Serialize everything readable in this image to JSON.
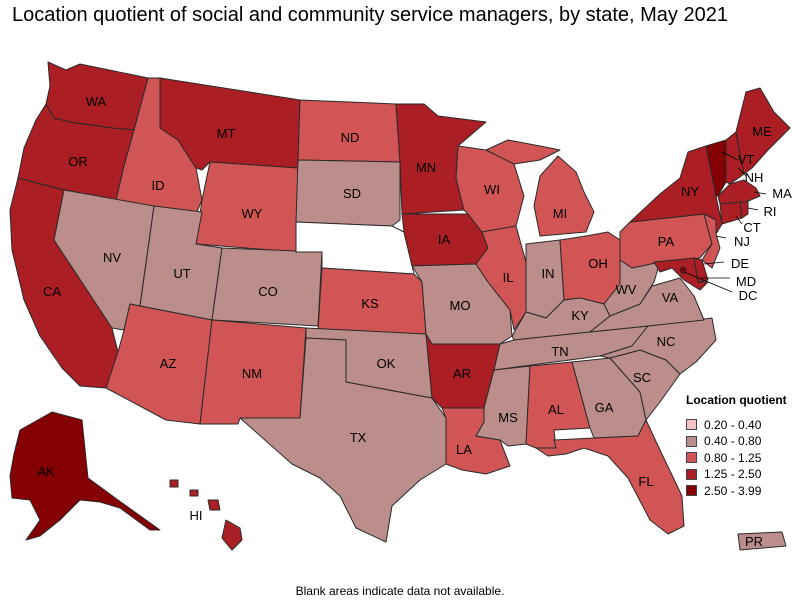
{
  "title": "Location quotient of social and community service managers, by state, May 2021",
  "footnote": "Blank areas indicate data not available.",
  "legend": {
    "title": "Location quotient",
    "items": [
      {
        "label": "0.20 - 0.40",
        "color": "#f4c2c4"
      },
      {
        "label": "0.40 - 0.80",
        "color": "#bb8e8b"
      },
      {
        "label": "0.80 - 1.25",
        "color": "#d25556"
      },
      {
        "label": "1.25 - 2.50",
        "color": "#ab1e24"
      },
      {
        "label": "2.50 - 3.99",
        "color": "#850003"
      }
    ]
  },
  "states": [
    {
      "abbr": "WA",
      "bin": 3
    },
    {
      "abbr": "OR",
      "bin": 3
    },
    {
      "abbr": "CA",
      "bin": 3
    },
    {
      "abbr": "ID",
      "bin": 2
    },
    {
      "abbr": "NV",
      "bin": 1
    },
    {
      "abbr": "MT",
      "bin": 3
    },
    {
      "abbr": "WY",
      "bin": 2
    },
    {
      "abbr": "UT",
      "bin": 1
    },
    {
      "abbr": "AZ",
      "bin": 2
    },
    {
      "abbr": "CO",
      "bin": 1
    },
    {
      "abbr": "NM",
      "bin": 2
    },
    {
      "abbr": "ND",
      "bin": 2
    },
    {
      "abbr": "SD",
      "bin": 1
    },
    {
      "abbr": "NE",
      "bin": null
    },
    {
      "abbr": "KS",
      "bin": 2
    },
    {
      "abbr": "OK",
      "bin": 1
    },
    {
      "abbr": "TX",
      "bin": 1
    },
    {
      "abbr": "MN",
      "bin": 3
    },
    {
      "abbr": "IA",
      "bin": 3
    },
    {
      "abbr": "MO",
      "bin": 1
    },
    {
      "abbr": "AR",
      "bin": 3
    },
    {
      "abbr": "LA",
      "bin": 2
    },
    {
      "abbr": "WI",
      "bin": 2
    },
    {
      "abbr": "IL",
      "bin": 2
    },
    {
      "abbr": "MI",
      "bin": 2
    },
    {
      "abbr": "IN",
      "bin": 1
    },
    {
      "abbr": "OH",
      "bin": 2
    },
    {
      "abbr": "KY",
      "bin": 1
    },
    {
      "abbr": "TN",
      "bin": 1
    },
    {
      "abbr": "MS",
      "bin": 1
    },
    {
      "abbr": "AL",
      "bin": 2
    },
    {
      "abbr": "GA",
      "bin": 1
    },
    {
      "abbr": "FL",
      "bin": 2
    },
    {
      "abbr": "SC",
      "bin": 1
    },
    {
      "abbr": "NC",
      "bin": 1
    },
    {
      "abbr": "VA",
      "bin": 1
    },
    {
      "abbr": "WV",
      "bin": 1
    },
    {
      "abbr": "PA",
      "bin": 2
    },
    {
      "abbr": "NY",
      "bin": 3
    },
    {
      "abbr": "VT",
      "bin": 4
    },
    {
      "abbr": "NH",
      "bin": 3
    },
    {
      "abbr": "ME",
      "bin": 3
    },
    {
      "abbr": "MA",
      "bin": 3
    },
    {
      "abbr": "RI",
      "bin": 3
    },
    {
      "abbr": "CT",
      "bin": 3
    },
    {
      "abbr": "NJ",
      "bin": 2
    },
    {
      "abbr": "DE",
      "bin": 3
    },
    {
      "abbr": "MD",
      "bin": 3
    },
    {
      "abbr": "DC",
      "bin": 4
    },
    {
      "abbr": "AK",
      "bin": 4
    },
    {
      "abbr": "HI",
      "bin": 3
    },
    {
      "abbr": "PR",
      "bin": 1
    }
  ]
}
